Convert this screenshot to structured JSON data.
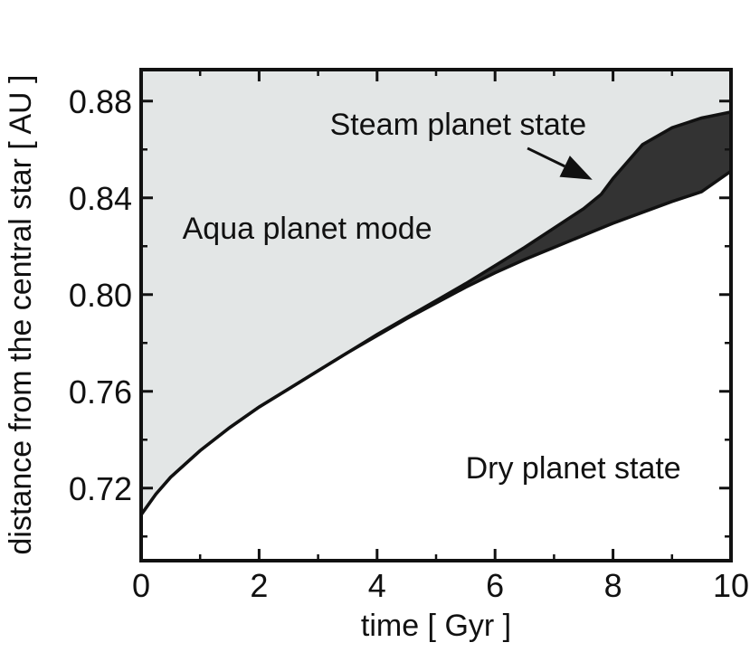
{
  "chart_data": {
    "type": "area",
    "xlabel": "time [ Gyr ]",
    "ylabel": "distance from the central star [ AU ]",
    "xlim": [
      0,
      10
    ],
    "ylim": [
      0.69,
      0.893
    ],
    "x_ticks": [
      "0",
      "2",
      "4",
      "6",
      "8",
      "10"
    ],
    "y_ticks": [
      "0.72",
      "0.76",
      "0.80",
      "0.84",
      "0.88"
    ],
    "x_tick_values": [
      0,
      2,
      4,
      6,
      8,
      10
    ],
    "y_tick_values": [
      0.72,
      0.76,
      0.8,
      0.84,
      0.88
    ],
    "x_minor_ticks": [
      1,
      3,
      5,
      7,
      9
    ],
    "y_minor_ticks": [
      0.7,
      0.74,
      0.78,
      0.82,
      0.86
    ],
    "series": [
      {
        "name": "",
        "role": "steam-upper-boundary",
        "x": [
          0,
          0.25,
          0.5,
          1,
          1.5,
          2,
          2.5,
          3,
          3.5,
          4,
          4.5,
          5,
          5.5,
          6,
          6.5,
          7,
          7.5,
          7.8,
          8,
          8.5,
          9,
          9.5,
          10
        ],
        "y": [
          0.709,
          0.7175,
          0.7245,
          0.7355,
          0.745,
          0.7535,
          0.761,
          0.7685,
          0.776,
          0.7835,
          0.7905,
          0.7975,
          0.8045,
          0.812,
          0.8195,
          0.8275,
          0.8355,
          0.8415,
          0.848,
          0.862,
          0.869,
          0.873,
          0.8755
        ]
      },
      {
        "name": "",
        "role": "dry-boundary",
        "x": [
          0,
          0.25,
          0.5,
          1,
          1.5,
          2,
          2.5,
          3,
          3.5,
          4,
          4.5,
          5,
          5.5,
          6,
          6.5,
          7,
          7.5,
          8,
          8.5,
          9,
          9.5,
          10
        ],
        "y": [
          0.709,
          0.7175,
          0.7245,
          0.7355,
          0.745,
          0.7535,
          0.761,
          0.7685,
          0.776,
          0.783,
          0.79,
          0.7965,
          0.803,
          0.809,
          0.8145,
          0.8195,
          0.8245,
          0.8295,
          0.834,
          0.8385,
          0.8425,
          0.851
        ]
      }
    ],
    "regions": {
      "aqua": {
        "label": "Aqua  planet mode",
        "x": 0.7,
        "y": 0.823,
        "color": "#e3e6e6"
      },
      "steam": {
        "label": "Steam  planet state",
        "x": 3.2,
        "y": 0.866,
        "color": "#333333",
        "arrow_from": [
          6.55,
          0.8605
        ],
        "arrow_to": [
          7.65,
          0.8475
        ]
      },
      "dry": {
        "label": "Dry  planet state",
        "x": 5.5,
        "y": 0.724,
        "color": "#ffffff"
      }
    },
    "grid": false,
    "legend": "none"
  }
}
